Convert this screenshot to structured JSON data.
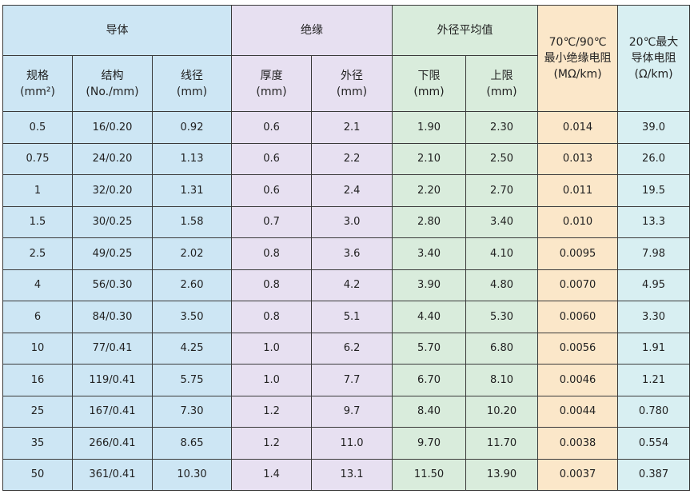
{
  "headers": {
    "group_conductor": "导体",
    "group_insulation": "绝缘",
    "group_outer_diameter": "外径平均值",
    "insulation_resistance": [
      "70℃/90℃",
      "最小绝缘电阻",
      "(MΩ/km)"
    ],
    "conductor_resistance": [
      "20℃最大",
      "导体电阻",
      "(Ω/km)"
    ],
    "spec": [
      "规格",
      "(mm²)"
    ],
    "structure": [
      "结构",
      "(No./mm)"
    ],
    "wire_diameter": [
      "线径",
      "(mm)"
    ],
    "thickness": [
      "厚度",
      "(mm)"
    ],
    "insulation_od": [
      "外径",
      "(mm)"
    ],
    "lower_limit": [
      "下限",
      "(mm)"
    ],
    "upper_limit": [
      "上限",
      "(mm)"
    ]
  },
  "rows": [
    [
      "0.5",
      "16/0.20",
      "0.92",
      "0.6",
      "2.1",
      "1.90",
      "2.30",
      "0.014",
      "39.0"
    ],
    [
      "0.75",
      "24/0.20",
      "1.13",
      "0.6",
      "2.2",
      "2.10",
      "2.50",
      "0.013",
      "26.0"
    ],
    [
      "1",
      "32/0.20",
      "1.31",
      "0.6",
      "2.4",
      "2.20",
      "2.70",
      "0.011",
      "19.5"
    ],
    [
      "1.5",
      "30/0.25",
      "1.58",
      "0.7",
      "3.0",
      "2.80",
      "3.40",
      "0.010",
      "13.3"
    ],
    [
      "2.5",
      "49/0.25",
      "2.02",
      "0.8",
      "3.6",
      "3.40",
      "4.10",
      "0.0095",
      "7.98"
    ],
    [
      "4",
      "56/0.30",
      "2.60",
      "0.8",
      "4.2",
      "3.90",
      "4.80",
      "0.0070",
      "4.95"
    ],
    [
      "6",
      "84/0.30",
      "3.50",
      "0.8",
      "5.1",
      "4.40",
      "5.30",
      "0.0060",
      "3.30"
    ],
    [
      "10",
      "77/0.41",
      "4.25",
      "1.0",
      "6.2",
      "5.70",
      "6.80",
      "0.0056",
      "1.91"
    ],
    [
      "16",
      "119/0.41",
      "5.75",
      "1.0",
      "7.7",
      "6.70",
      "8.10",
      "0.0046",
      "1.21"
    ],
    [
      "25",
      "167/0.41",
      "7.30",
      "1.2",
      "9.7",
      "8.40",
      "10.20",
      "0.0044",
      "0.780"
    ],
    [
      "35",
      "266/0.41",
      "8.65",
      "1.2",
      "11.0",
      "9.70",
      "11.70",
      "0.0038",
      "0.554"
    ],
    [
      "50",
      "361/0.41",
      "10.30",
      "1.4",
      "13.1",
      "11.50",
      "13.90",
      "0.0037",
      "0.387"
    ]
  ]
}
